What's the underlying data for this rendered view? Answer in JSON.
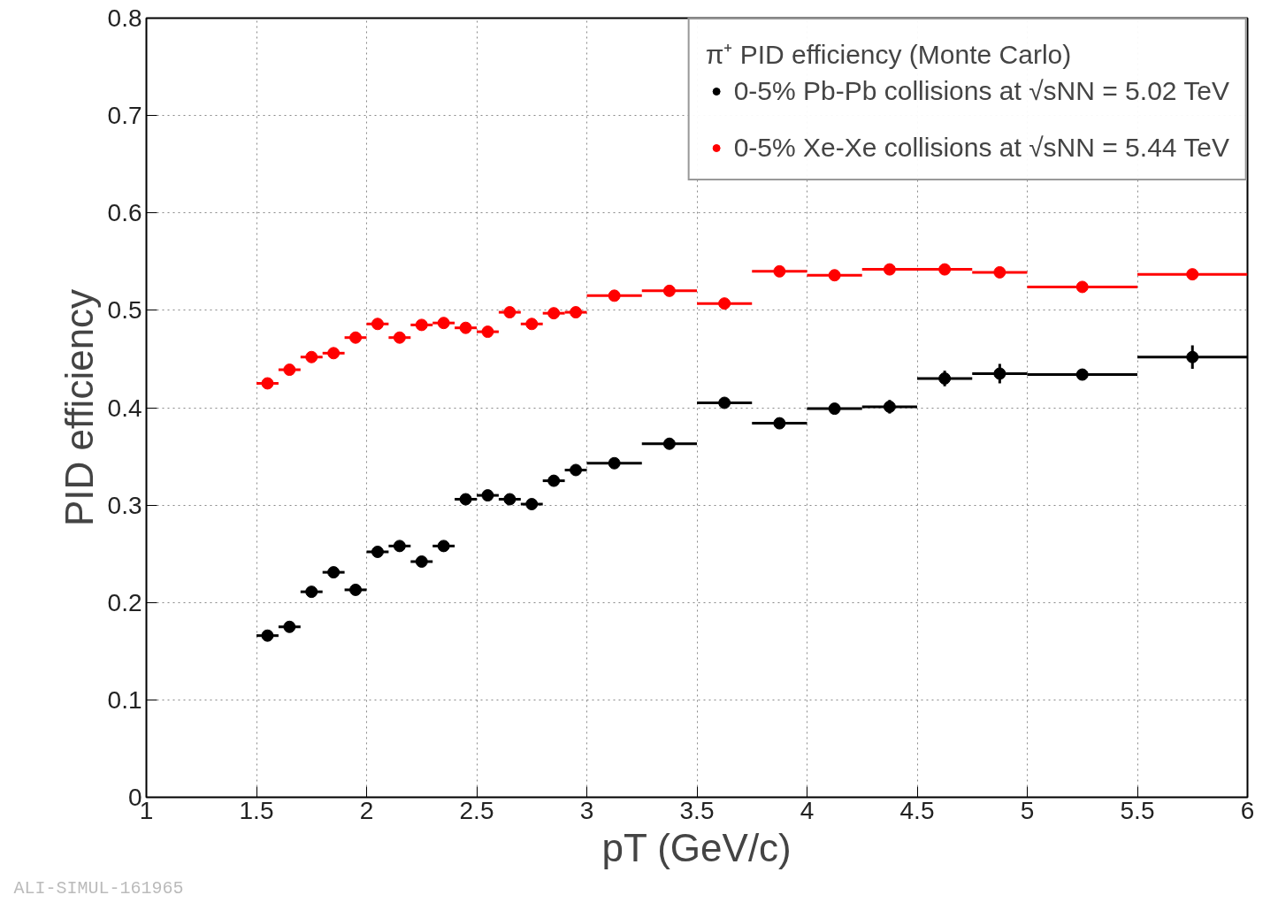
{
  "chart_data": {
    "type": "scatter",
    "xlabel": "pT (GeV/c)",
    "ylabel": "PID efficiency",
    "legend_title": "π⁺ PID efficiency (Monte Carlo)",
    "x": [
      1.55,
      1.65,
      1.75,
      1.85,
      1.95,
      2.05,
      2.15,
      2.25,
      2.35,
      2.45,
      2.55,
      2.65,
      2.75,
      2.85,
      2.95,
      3.125,
      3.375,
      3.625,
      3.875,
      4.125,
      4.375,
      4.625,
      4.875,
      5.25,
      5.75
    ],
    "series": [
      {
        "name": "0-5% Pb-Pb collisions at √sNN = 5.02 TeV",
        "color": "#000000",
        "values": [
          0.166,
          0.175,
          0.211,
          0.231,
          0.213,
          0.252,
          0.258,
          0.242,
          0.258,
          0.306,
          0.31,
          0.306,
          0.301,
          0.325,
          0.336,
          0.343,
          0.363,
          0.405,
          0.384,
          0.399,
          0.401,
          0.43,
          0.435,
          0.434,
          0.452
        ],
        "errors": [
          null,
          null,
          null,
          null,
          null,
          null,
          null,
          null,
          null,
          null,
          null,
          null,
          null,
          null,
          null,
          null,
          null,
          null,
          null,
          null,
          0.007,
          0.008,
          0.01,
          null,
          0.012
        ],
        "xerrors": [
          0.05,
          0.05,
          0.05,
          0.05,
          0.05,
          0.05,
          0.05,
          0.05,
          0.05,
          0.05,
          0.05,
          0.05,
          0.05,
          0.05,
          0.05,
          0.125,
          0.125,
          0.125,
          0.125,
          0.125,
          0.125,
          0.125,
          0.125,
          0.25,
          0.25
        ]
      },
      {
        "name": "0-5% Xe-Xe collisions at √sNN = 5.44 TeV",
        "color": "#ff0000",
        "values": [
          0.425,
          0.439,
          0.452,
          0.456,
          0.472,
          0.486,
          0.472,
          0.485,
          0.487,
          0.482,
          0.478,
          0.498,
          0.486,
          0.497,
          0.498,
          0.515,
          0.52,
          0.507,
          0.54,
          0.536,
          0.542,
          0.542,
          0.539,
          0.524,
          0.537
        ],
        "xerrors": [
          0.05,
          0.05,
          0.05,
          0.05,
          0.05,
          0.05,
          0.05,
          0.05,
          0.05,
          0.05,
          0.05,
          0.05,
          0.05,
          0.05,
          0.05,
          0.125,
          0.125,
          0.125,
          0.125,
          0.125,
          0.125,
          0.125,
          0.125,
          0.25,
          0.25
        ]
      }
    ],
    "xlim": [
      1,
      6
    ],
    "ylim": [
      0,
      0.8
    ],
    "xticks": [
      1,
      1.5,
      2,
      2.5,
      3,
      3.5,
      4,
      4.5,
      5,
      5.5,
      6
    ],
    "yticks": [
      0,
      0.1,
      0.2,
      0.3,
      0.4,
      0.5,
      0.6,
      0.7,
      0.8
    ],
    "grid": true,
    "legend": "top right",
    "marker": "circle",
    "annotations": [
      "ALI-SIMUL-161965"
    ]
  }
}
